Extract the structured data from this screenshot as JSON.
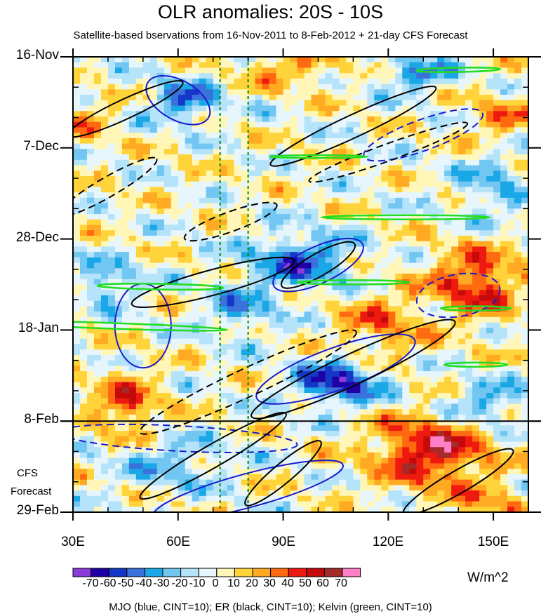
{
  "chart_data": {
    "type": "heatmap",
    "title": "OLR anomalies: 20S - 10S",
    "subtitle": "Satellite-based bservations from 16-Nov-2011 to 8-Feb-2012 + 21-day CFS Forecast",
    "x_axis": {
      "range": [
        30,
        160
      ],
      "ticks": [
        {
          "value": 30,
          "label": "30E"
        },
        {
          "value": 60,
          "label": "60E"
        },
        {
          "value": 90,
          "label": "90E"
        },
        {
          "value": 120,
          "label": "120E"
        },
        {
          "value": 150,
          "label": "150E"
        }
      ]
    },
    "y_axis": {
      "range_days": [
        0,
        105
      ],
      "direction": "downward",
      "ticks": [
        {
          "day": 0,
          "label": "16-Nov"
        },
        {
          "day": 21,
          "label": "7-Dec"
        },
        {
          "day": 42,
          "label": "28-Dec"
        },
        {
          "day": 63,
          "label": "18-Jan"
        },
        {
          "day": 84,
          "label": "8-Feb"
        },
        {
          "day": 105,
          "label": "29-Feb"
        }
      ]
    },
    "forecast_start_day": 84,
    "forecast_label": [
      "CFS",
      "Forecast"
    ],
    "reference_lines_x": [
      72,
      80
    ],
    "colorbar": {
      "units": "W/m^2",
      "levels": [
        -70,
        -60,
        -50,
        -40,
        -30,
        -20,
        -10,
        0,
        10,
        20,
        30,
        40,
        50,
        60,
        70
      ],
      "labels": [
        "-70",
        "-60",
        "-50",
        "-40",
        "-30",
        "-20",
        "-10",
        "0",
        "10",
        "20",
        "30",
        "40",
        "50",
        "60",
        "70"
      ],
      "colors": [
        "#8b3bd9",
        "#1f00a6",
        "#1437c8",
        "#3a72dc",
        "#1aa7e6",
        "#72c6f2",
        "#b5e3f9",
        "#e6f6fc",
        "#fff6b8",
        "#ffd33a",
        "#ffaa22",
        "#ff6a10",
        "#ee1a10",
        "#c40a0a",
        "#a52a2a",
        "#ff7fc8"
      ]
    },
    "contours": [
      {
        "name": "MJO",
        "color": "blue",
        "cint": 10
      },
      {
        "name": "ER",
        "color": "black",
        "cint": 10
      },
      {
        "name": "Kelvin",
        "color": "green",
        "cint": 10
      }
    ],
    "legend_text": "MJO (blue, CINT=10); ER (black, CINT=10); Kelvin (green, CINT=10)"
  },
  "colors": {
    "mjo": "#1a1acc",
    "er": "#000000",
    "kelvin": "#22dd22",
    "reference_line": "#008800"
  }
}
